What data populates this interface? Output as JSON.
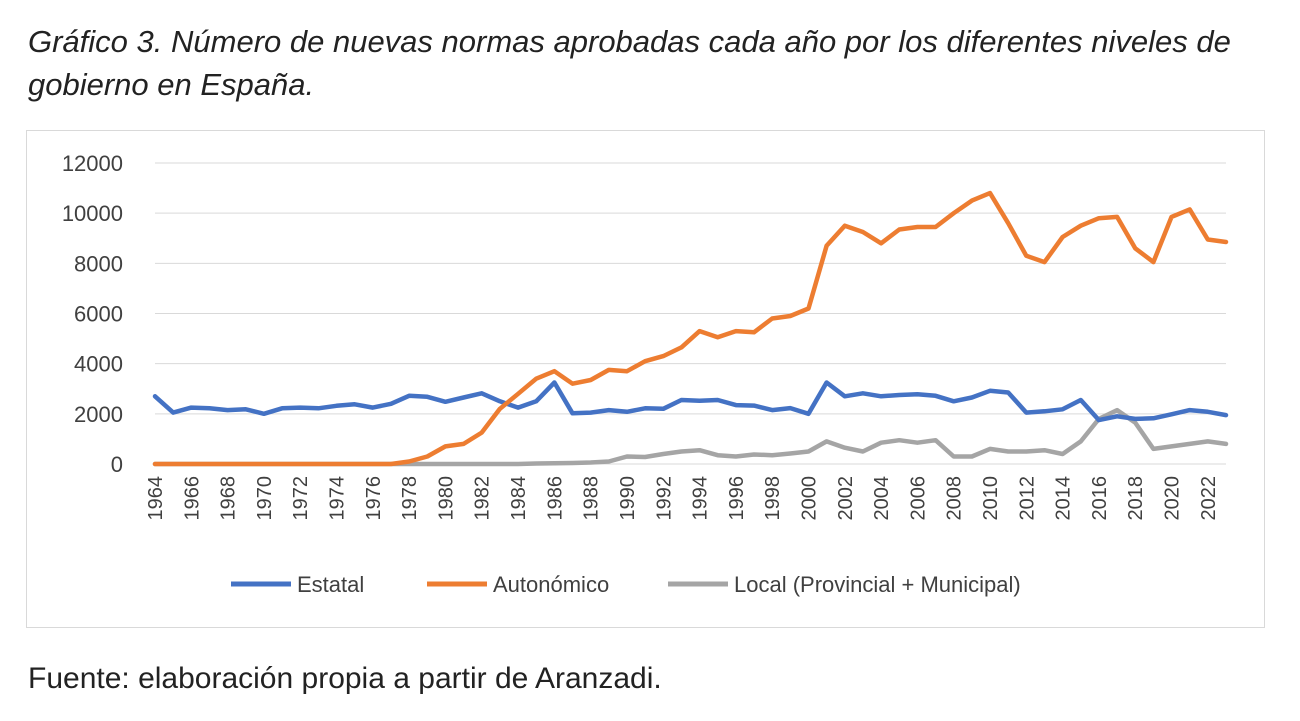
{
  "title": "Gráfico 3. Número de nuevas normas aprobadas cada año por los diferentes niveles de gobierno en España.",
  "source": "Fuente: elaboración propia a partir de Aranzadi.",
  "chart_data": {
    "type": "line",
    "ylim": [
      0,
      12000
    ],
    "yticks": [
      "0",
      "2000",
      "4000",
      "6000",
      "8000",
      "10000",
      "12000"
    ],
    "x": [
      1964,
      1965,
      1966,
      1967,
      1968,
      1969,
      1970,
      1971,
      1972,
      1973,
      1974,
      1975,
      1976,
      1977,
      1978,
      1979,
      1980,
      1981,
      1982,
      1983,
      1984,
      1985,
      1986,
      1987,
      1988,
      1989,
      1990,
      1991,
      1992,
      1993,
      1994,
      1995,
      1996,
      1997,
      1998,
      1999,
      2000,
      2001,
      2002,
      2003,
      2004,
      2005,
      2006,
      2007,
      2008,
      2009,
      2010,
      2011,
      2012,
      2013,
      2014,
      2015,
      2016,
      2017,
      2018,
      2019,
      2020,
      2021,
      2022,
      2023
    ],
    "xtick_labels": [
      "1964",
      "1966",
      "1968",
      "1970",
      "1972",
      "1974",
      "1976",
      "1978",
      "1980",
      "1982",
      "1984",
      "1986",
      "1988",
      "1990",
      "1992",
      "1994",
      "1996",
      "1998",
      "2000",
      "2002",
      "2004",
      "2006",
      "2008",
      "2010",
      "2012",
      "2014",
      "2016",
      "2018",
      "2020",
      "2022"
    ],
    "grid": true,
    "legend_position": "bottom",
    "series": [
      {
        "name": "Estatal",
        "color": "#4472c4",
        "values": [
          2700,
          2050,
          2250,
          2220,
          2150,
          2180,
          2000,
          2220,
          2250,
          2220,
          2320,
          2380,
          2250,
          2400,
          2720,
          2680,
          2480,
          2650,
          2820,
          2500,
          2250,
          2500,
          3250,
          2020,
          2050,
          2150,
          2080,
          2220,
          2200,
          2550,
          2520,
          2550,
          2350,
          2330,
          2150,
          2230,
          2000,
          3250,
          2700,
          2820,
          2700,
          2750,
          2780,
          2720,
          2500,
          2650,
          2920,
          2850,
          2050,
          2100,
          2180,
          2550,
          1750,
          1900,
          1800,
          1820,
          1980,
          2150,
          2080,
          1950
        ]
      },
      {
        "name": "Autonómico",
        "color": "#ed7d31",
        "values": [
          0,
          0,
          0,
          0,
          0,
          0,
          0,
          0,
          0,
          0,
          0,
          0,
          0,
          0,
          100,
          300,
          700,
          800,
          1250,
          2200,
          2800,
          3400,
          3700,
          3200,
          3350,
          3750,
          3700,
          4100,
          4300,
          4650,
          5300,
          5050,
          5300,
          5250,
          5800,
          5900,
          6200,
          8700,
          9500,
          9250,
          8800,
          9350,
          9450,
          9450,
          10000,
          10500,
          10800,
          9600,
          8300,
          8050,
          9050,
          9500,
          9800,
          9850,
          8600,
          8050,
          9850,
          10150,
          8950,
          8850
        ]
      },
      {
        "name": "Local (Provincial + Municipal)",
        "color": "#a5a5a5",
        "values": [
          0,
          0,
          0,
          0,
          0,
          0,
          0,
          0,
          0,
          0,
          0,
          0,
          0,
          0,
          0,
          0,
          0,
          0,
          0,
          0,
          0,
          20,
          30,
          40,
          60,
          100,
          300,
          280,
          400,
          500,
          550,
          350,
          300,
          380,
          350,
          420,
          500,
          900,
          650,
          500,
          850,
          950,
          850,
          950,
          300,
          300,
          600,
          500,
          500,
          550,
          400,
          900,
          1800,
          2150,
          1650,
          600,
          700,
          800,
          900,
          800
        ]
      }
    ]
  }
}
